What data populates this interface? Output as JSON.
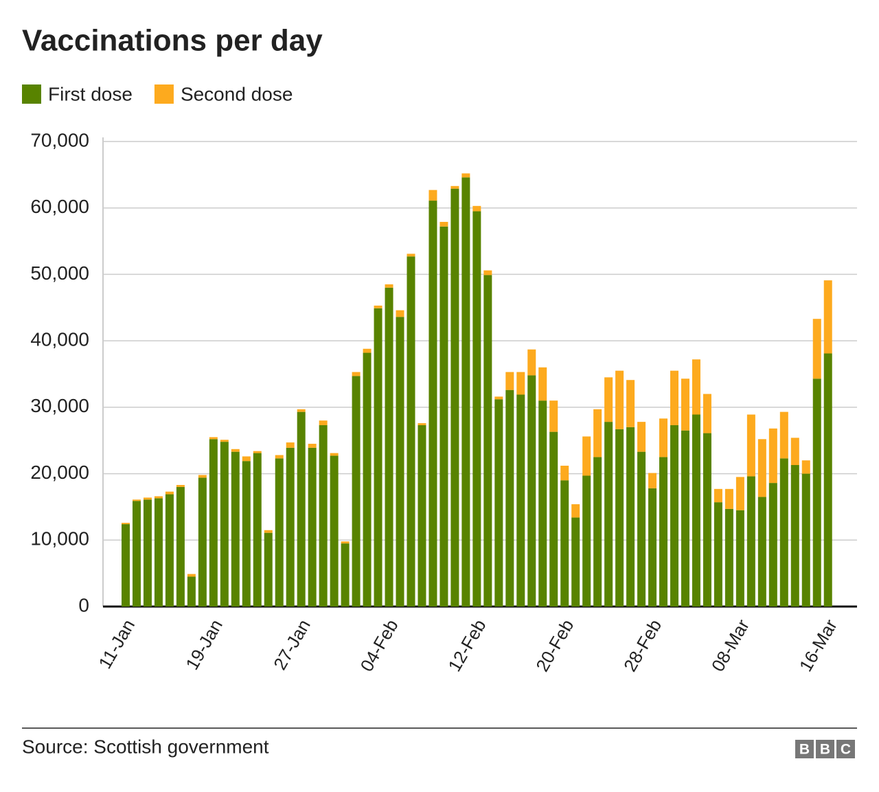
{
  "chart_data": {
    "type": "stacked-bar",
    "title": "Vaccinations per day",
    "source": "Source: Scottish government",
    "branding": [
      "B",
      "B",
      "C"
    ],
    "categories": [
      "11-Jan",
      null,
      null,
      null,
      null,
      null,
      null,
      null,
      "19-Jan",
      null,
      null,
      null,
      null,
      null,
      null,
      null,
      "27-Jan",
      null,
      null,
      null,
      null,
      null,
      null,
      null,
      "04-Feb",
      null,
      null,
      null,
      null,
      null,
      null,
      null,
      "12-Feb",
      null,
      null,
      null,
      null,
      null,
      null,
      null,
      "20-Feb",
      null,
      null,
      null,
      null,
      null,
      null,
      null,
      "28-Feb",
      null,
      null,
      null,
      null,
      null,
      null,
      null,
      "08-Mar",
      null,
      null,
      null,
      null,
      null,
      null,
      null,
      "16-Mar"
    ],
    "series": [
      {
        "name": "First dose",
        "color": "#588300",
        "values": [
          12400,
          15900,
          16100,
          16300,
          16900,
          18000,
          4500,
          19400,
          25200,
          24800,
          23300,
          21900,
          23100,
          11100,
          22300,
          23900,
          29300,
          23900,
          27300,
          22700,
          9500,
          34700,
          38200,
          44900,
          48000,
          43600,
          52700,
          27300,
          61100,
          57200,
          62900,
          64600,
          59500,
          49900,
          31200,
          32600,
          31900,
          34800,
          31000,
          26300,
          19000,
          13400,
          19700,
          22500,
          27800,
          26700,
          27000,
          23300,
          17800,
          22500,
          27300,
          26500,
          28900,
          26100,
          15700,
          14700,
          14500,
          19600,
          16500,
          18600,
          22300,
          21300,
          20000,
          34300,
          38100
        ]
      },
      {
        "name": "Second dose",
        "color": "#fdaa1e",
        "values": [
          200,
          200,
          300,
          300,
          400,
          300,
          400,
          400,
          300,
          300,
          400,
          700,
          300,
          400,
          500,
          800,
          400,
          600,
          700,
          400,
          300,
          600,
          600,
          400,
          500,
          1000,
          400,
          300,
          1600,
          700,
          400,
          600,
          800,
          700,
          400,
          2700,
          3400,
          3900,
          5000,
          4700,
          2200,
          2000,
          5900,
          7200,
          6700,
          8800,
          7100,
          4500,
          2300,
          5800,
          8200,
          7800,
          8300,
          5900,
          2000,
          3000,
          5000,
          9300,
          8700,
          8200,
          7000,
          4100,
          2000,
          9000,
          11000
        ]
      }
    ],
    "ylim": [
      0,
      70000
    ],
    "yticks": [
      0,
      {
        "value": 10000,
        "label": "10,000"
      },
      {
        "value": 20000,
        "label": "20,000"
      },
      {
        "value": 30000,
        "label": "30,000"
      },
      {
        "value": 40000,
        "label": "40,000"
      },
      {
        "value": 50000,
        "label": "50,000"
      },
      {
        "value": 60000,
        "label": "60,000"
      },
      {
        "value": 70000,
        "label": "70,000"
      }
    ],
    "grid": true,
    "legend": "top-left"
  }
}
